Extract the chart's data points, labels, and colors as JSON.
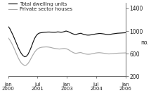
{
  "title": "",
  "ylabel": "no.",
  "ylim": [
    200,
    1500
  ],
  "yticks": [
    200,
    600,
    1000,
    1400
  ],
  "background_color": "#ffffff",
  "legend_labels": [
    "Total dwelling units",
    "Private sector houses"
  ],
  "line_colors": [
    "#111111",
    "#aaaaaa"
  ],
  "xtick_labels": [
    "Jan\n2000",
    "Jul\n2001",
    "Jan\n2003",
    "Jul\n2004",
    "Jan\n2006"
  ],
  "xtick_positions": [
    0,
    18,
    36,
    54,
    72
  ],
  "xlim": [
    0,
    72
  ],
  "total_dwelling_units": [
    1080,
    1040,
    980,
    920,
    850,
    780,
    710,
    650,
    600,
    565,
    545,
    555,
    590,
    650,
    720,
    800,
    870,
    920,
    950,
    965,
    970,
    975,
    978,
    980,
    982,
    982,
    980,
    978,
    978,
    980,
    985,
    982,
    978,
    982,
    990,
    1000,
    992,
    980,
    965,
    952,
    942,
    938,
    948,
    955,
    960,
    948,
    938,
    932,
    928,
    928,
    932,
    938,
    942,
    948,
    952,
    956,
    956,
    952,
    948,
    942,
    938,
    938,
    942,
    948,
    952,
    956,
    960,
    962,
    964,
    966,
    968,
    970
  ],
  "private_sector_houses": [
    880,
    840,
    790,
    730,
    665,
    595,
    530,
    475,
    432,
    408,
    392,
    400,
    428,
    472,
    528,
    580,
    628,
    664,
    688,
    704,
    712,
    716,
    718,
    720,
    718,
    714,
    708,
    700,
    694,
    690,
    686,
    682,
    686,
    690,
    692,
    688,
    678,
    662,
    642,
    626,
    612,
    606,
    612,
    618,
    620,
    610,
    600,
    594,
    590,
    590,
    594,
    600,
    606,
    612,
    616,
    618,
    616,
    612,
    608,
    604,
    598,
    596,
    598,
    600,
    603,
    606,
    608,
    610,
    611,
    612,
    613,
    614
  ]
}
